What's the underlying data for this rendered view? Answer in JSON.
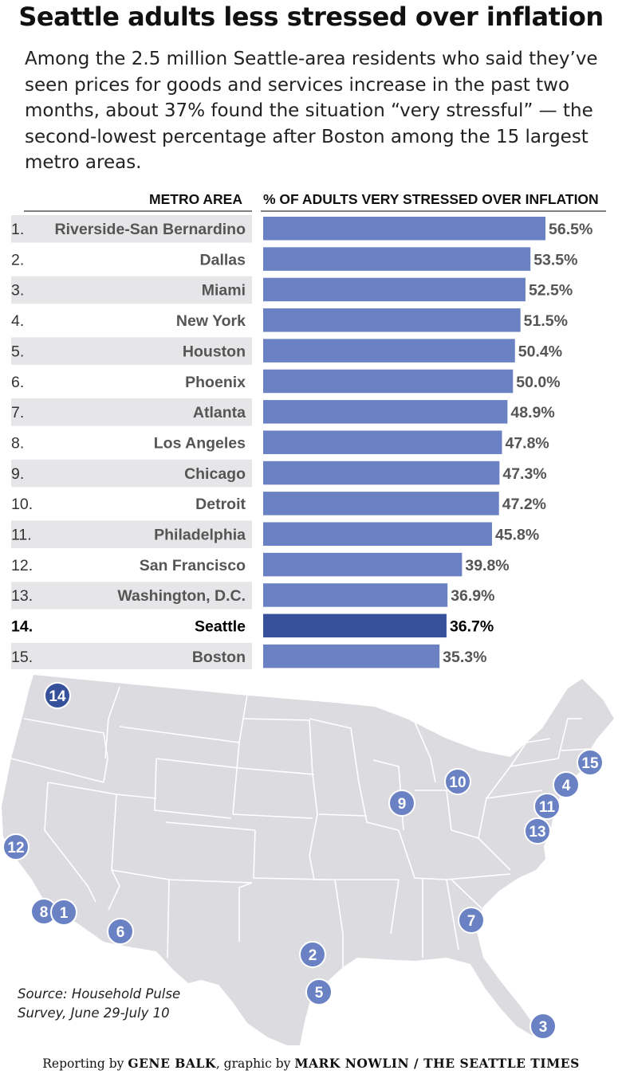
{
  "header": {
    "title": "Seattle adults less stressed over inflation",
    "subtitle": "Among the 2.5 million Seattle-area residents who said they’ve seen prices for goods and services increase in the past two months, about 37% found the situation “very stressful” — the second-lowest percentage after Boston among the 15 largest metro areas."
  },
  "colors": {
    "bar": "#6a82c4",
    "highlight_bar": "#36509a",
    "row_shade": "#e6e6e9",
    "map_land": "#dcdce0",
    "map_lines": "#ffffff",
    "marker": "#6a82c4"
  },
  "chart_data": {
    "type": "bar",
    "orientation": "horizontal",
    "xlabel": "% OF ADULTS VERY STRESSED OVER INFLATION",
    "ylabel": "METRO AREA",
    "ranks": [
      "1.",
      "2.",
      "3.",
      "4.",
      "5.",
      "6.",
      "7.",
      "8.",
      "9.",
      "10.",
      "11.",
      "12.",
      "13.",
      "14.",
      "15."
    ],
    "categories": [
      "Riverside-San Bernardino",
      "Dallas",
      "Miami",
      "New York",
      "Houston",
      "Phoenix",
      "Atlanta",
      "Los Angeles",
      "Chicago",
      "Detroit",
      "Philadelphia",
      "San Francisco",
      "Washington, D.C.",
      "Seattle",
      "Boston"
    ],
    "values": [
      56.5,
      53.5,
      52.5,
      51.5,
      50.4,
      50.0,
      48.9,
      47.8,
      47.3,
      47.2,
      45.8,
      39.8,
      36.9,
      36.7,
      35.3
    ],
    "value_labels": [
      "56.5%",
      "53.5%",
      "52.5%",
      "51.5%",
      "50.4%",
      "50.0%",
      "48.9%",
      "47.8%",
      "47.3%",
      "47.2%",
      "45.8%",
      "39.8%",
      "36.9%",
      "36.7%",
      "35.3%"
    ],
    "highlight": "Seattle",
    "xlim": [
      0,
      56.5
    ]
  },
  "map": {
    "markers": [
      "14",
      "15",
      "4",
      "10",
      "9",
      "11",
      "13",
      "12",
      "8",
      "1",
      "6",
      "7",
      "2",
      "5",
      "3"
    ]
  },
  "source": {
    "line1": "Source: Household Pulse",
    "line2": "Survey, June 29-July 10"
  },
  "credit": {
    "prefix": "Reporting by ",
    "reporter": "GENE BALK",
    "middle": ", graphic by ",
    "artist": "MARK NOWLIN / THE SEATTLE TIMES"
  }
}
